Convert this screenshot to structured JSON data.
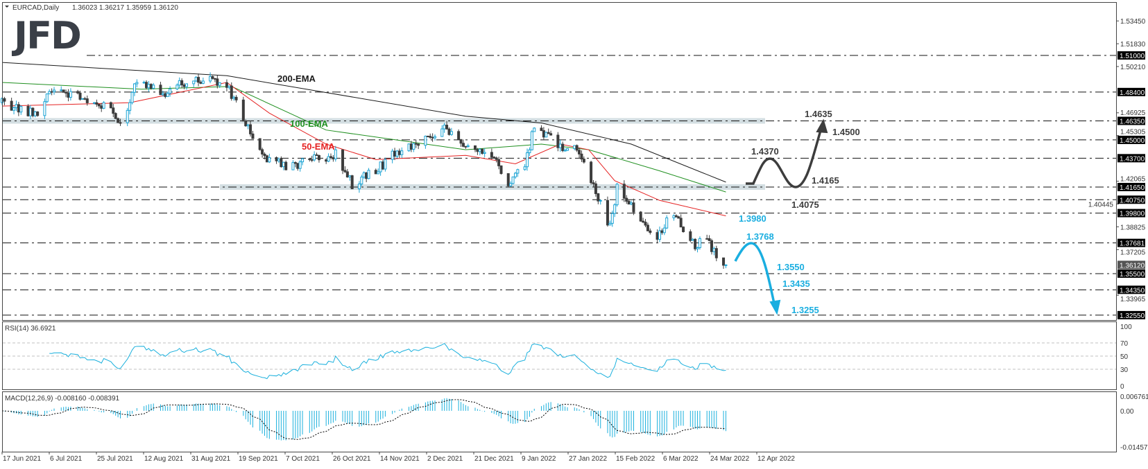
{
  "header": {
    "symbol": "EURCAD,Daily",
    "ohlc": "1.36023 1.36217 1.35959 1.36120"
  },
  "logo": "JFD",
  "colors": {
    "bull": "#1ba3d4",
    "bear": "#3c3c3c",
    "ema200": "#1a1a1a",
    "ema100": "#1f8f1f",
    "ema50": "#e52222",
    "bullish_scenario": "#3d3d3d",
    "bearish_scenario": "#1aaee0",
    "band": "#d3dee2",
    "rsi": "#1ab0dd",
    "macd_hist": "#1ab0dd"
  },
  "chart_data": {
    "type": "candlestick",
    "symbol": "EURCAD",
    "timeframe": "Daily",
    "price_axis": {
      "range": [
        1.319,
        1.54
      ],
      "tick_labels": [
        "1.53450",
        "1.51830",
        "1.50210",
        "1.46925",
        "1.45305",
        "1.42065",
        "1.40445",
        "1.38825",
        "1.37205",
        "1.33965"
      ]
    },
    "date_axis": [
      "17 Jun 2021",
      "6 Jul 2021",
      "25 Jul 2021",
      "12 Aug 2021",
      "31 Aug 2021",
      "19 Sep 2021",
      "7 Oct 2021",
      "26 Oct 2021",
      "14 Nov 2021",
      "2 Dec 2021",
      "21 Dec 2021",
      "9 Jan 2022",
      "27 Jan 2022",
      "15 Feb 2022",
      "6 Mar 2022",
      "24 Mar 2022",
      "12 Apr 2022"
    ],
    "approx_closes": [
      [
        "2021-06-17",
        1.4764
      ],
      [
        "2021-07-01",
        1.468
      ],
      [
        "2021-07-08",
        1.487
      ],
      [
        "2021-07-20",
        1.48
      ],
      [
        "2021-08-02",
        1.471
      ],
      [
        "2021-08-06",
        1.46
      ],
      [
        "2021-08-13",
        1.493
      ],
      [
        "2021-08-25",
        1.484
      ],
      [
        "2021-09-03",
        1.492
      ],
      [
        "2021-09-15",
        1.493
      ],
      [
        "2021-09-21",
        1.485
      ],
      [
        "2021-09-28",
        1.462
      ],
      [
        "2021-10-06",
        1.437
      ],
      [
        "2021-10-15",
        1.431
      ],
      [
        "2021-10-27",
        1.436
      ],
      [
        "2021-11-05",
        1.44
      ],
      [
        "2021-11-12",
        1.4187
      ],
      [
        "2021-11-22",
        1.428
      ],
      [
        "2021-12-01",
        1.442
      ],
      [
        "2021-12-10",
        1.446
      ],
      [
        "2021-12-20",
        1.4595
      ],
      [
        "2021-12-31",
        1.446
      ],
      [
        "2022-01-10",
        1.44
      ],
      [
        "2022-01-17",
        1.4187
      ],
      [
        "2022-01-24",
        1.431
      ],
      [
        "2022-01-28",
        1.4595
      ],
      [
        "2022-02-07",
        1.446
      ],
      [
        "2022-02-16",
        1.443
      ],
      [
        "2022-02-23",
        1.414
      ],
      [
        "2022-03-01",
        1.3875
      ],
      [
        "2022-03-04",
        1.416
      ],
      [
        "2022-03-10",
        1.402
      ],
      [
        "2022-03-17",
        1.3875
      ],
      [
        "2022-03-21",
        1.38
      ],
      [
        "2022-03-28",
        1.3995
      ],
      [
        "2022-04-01",
        1.3826
      ],
      [
        "2022-04-06",
        1.3755
      ],
      [
        "2022-04-11",
        1.38
      ],
      [
        "2022-04-14",
        1.3706
      ],
      [
        "2022-04-19",
        1.3612
      ]
    ],
    "ema_series": [
      {
        "name": "200-EMA",
        "points": [
          [
            "2021-06-17",
            1.505
          ],
          [
            "2021-09-20",
            1.4956
          ],
          [
            "2021-12-30",
            1.4668
          ],
          [
            "2022-01-31",
            1.462
          ],
          [
            "2022-03-10",
            1.447
          ],
          [
            "2022-04-19",
            1.42
          ]
        ]
      },
      {
        "name": "100-EMA",
        "points": [
          [
            "2021-06-17",
            1.4908
          ],
          [
            "2021-08-15",
            1.486
          ],
          [
            "2021-09-22",
            1.488
          ],
          [
            "2021-11-01",
            1.457
          ],
          [
            "2021-12-30",
            1.443
          ],
          [
            "2022-01-31",
            1.447
          ],
          [
            "2022-02-20",
            1.443
          ],
          [
            "2022-03-22",
            1.428
          ],
          [
            "2022-04-19",
            1.413
          ]
        ]
      },
      {
        "name": "50-EMA",
        "points": [
          [
            "2021-06-17",
            1.474
          ],
          [
            "2021-08-10",
            1.4764
          ],
          [
            "2021-09-20",
            1.4908
          ],
          [
            "2021-10-08",
            1.469
          ],
          [
            "2021-11-01",
            1.447
          ],
          [
            "2021-11-22",
            1.436
          ],
          [
            "2021-12-30",
            1.439
          ],
          [
            "2022-01-20",
            1.433
          ],
          [
            "2022-02-08",
            1.447
          ],
          [
            "2022-02-20",
            1.443
          ],
          [
            "2022-03-03",
            1.421
          ],
          [
            "2022-03-22",
            1.407
          ],
          [
            "2022-04-19",
            1.396
          ]
        ]
      }
    ],
    "levels": [
      "1.51000",
      "1.48400",
      "1.46350",
      "1.45000",
      "1.43700",
      "1.41650",
      "1.40750",
      "1.39800",
      "1.37681",
      "1.35500",
      "1.34350",
      "1.32550"
    ],
    "current_price": "1.36120",
    "zones": [
      1.4635,
      1.4165
    ],
    "annotations": {
      "bullish": [
        "1.4635",
        "1.4500",
        "1.4370",
        "1.4165",
        "1.4075"
      ],
      "bearish": [
        "1.3980",
        "1.3768",
        "1.3550",
        "1.3435",
        "1.3255"
      ]
    },
    "rsi": {
      "title": "RSI(14) 36.6921",
      "levels": [
        "100",
        "70",
        "50",
        "30",
        "0"
      ]
    },
    "macd": {
      "title": "MACD(12,26,9) -0.008160 -0.008391",
      "axis_labels": [
        "0.006761",
        "0.00",
        "-0.014578"
      ],
      "range": [
        -0.014578,
        0.006761
      ]
    }
  }
}
